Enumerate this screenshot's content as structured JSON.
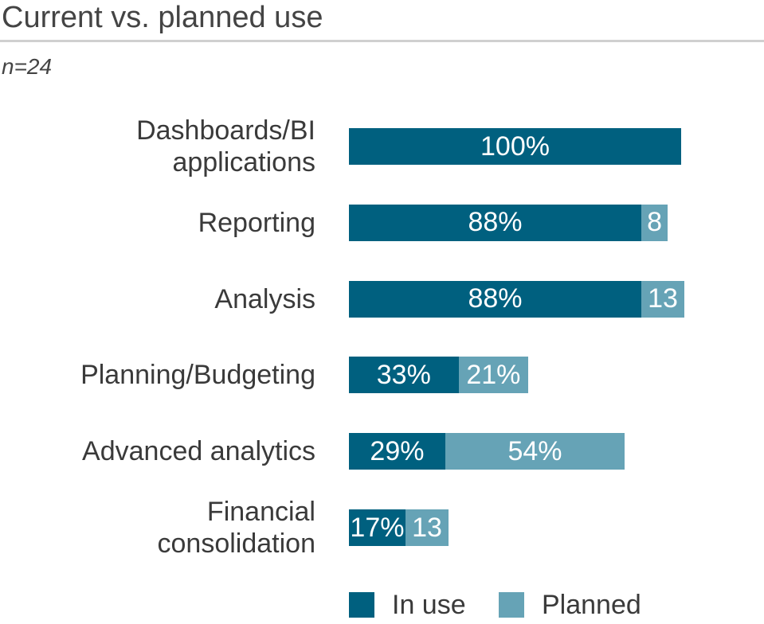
{
  "chart_data": {
    "type": "stacked-bar",
    "orientation": "horizontal",
    "title": "Current vs. planned use",
    "subtitle": "n=24",
    "categories": [
      "Dashboards/BI\napplications",
      "Reporting",
      "Analysis",
      "Planning/Budgeting",
      "Advanced analytics",
      "Financial\nconsolidation"
    ],
    "series": [
      {
        "name": "In use",
        "color": "#00607f",
        "values": [
          100,
          88,
          88,
          33,
          29,
          17
        ],
        "value_labels": [
          "100%",
          "88%",
          "88%",
          "33%",
          "29%",
          "17%"
        ]
      },
      {
        "name": "Planned",
        "color": "#66a3b6",
        "values": [
          null,
          8,
          13,
          21,
          54,
          13
        ],
        "value_labels": [
          null,
          "8",
          "13",
          "21%",
          "54%",
          "13"
        ]
      }
    ],
    "legend": "bottom"
  }
}
